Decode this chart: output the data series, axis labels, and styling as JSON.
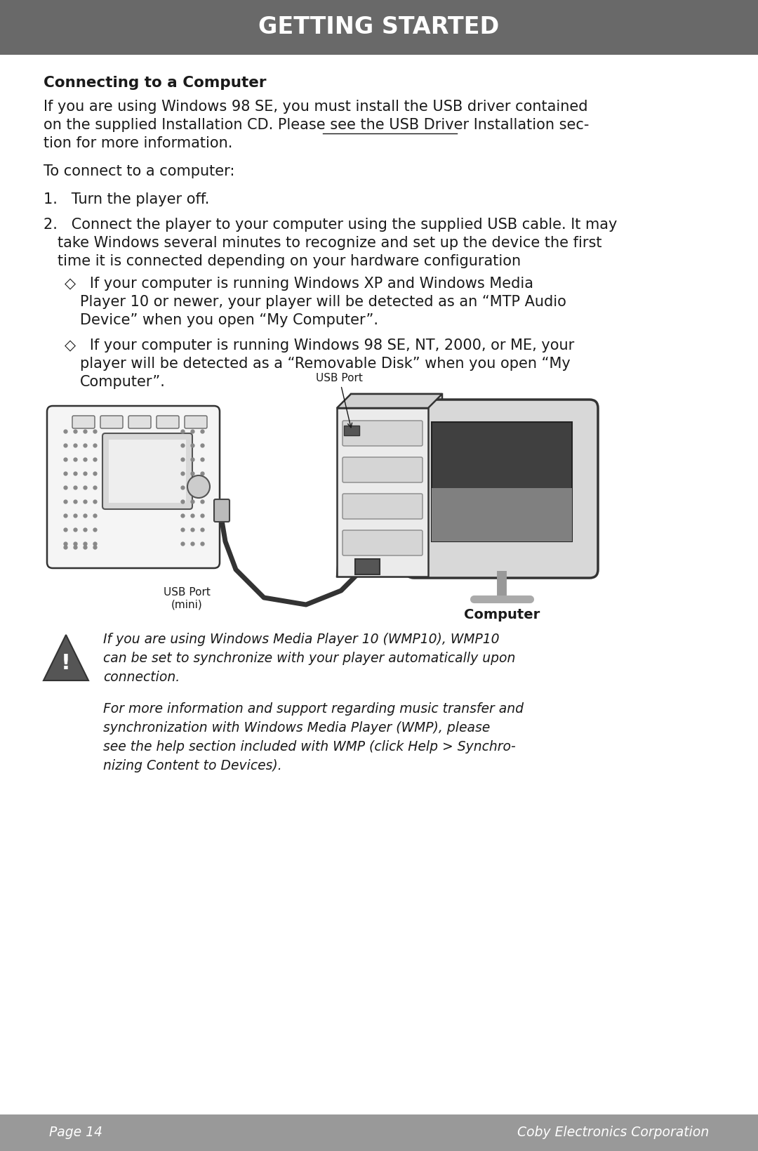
{
  "header_bg": "#696969",
  "header_text": "GETTING STARTED",
  "header_text_color": "#ffffff",
  "footer_bg": "#999999",
  "footer_left": "Page 14",
  "footer_right": "Coby Electronics Corporation",
  "footer_text_color": "#ffffff",
  "body_bg": "#ffffff",
  "body_text_color": "#1a1a1a",
  "title": "Connecting to a Computer",
  "para1_l1": "If you are using Windows 98 SE, you must install the USB driver contained",
  "para1_l2a": "on the supplied Installation CD. Please see the ",
  "para1_l2b": "USB Driver Installation",
  "para1_l2c": " sec-",
  "para1_l3": "tion for more information.",
  "para2": "To connect to a computer:",
  "item1": "1.   Turn the player off.",
  "item2_l1": "2.   Connect the player to your computer using the supplied USB cable. It may",
  "item2_l2": "      take Windows several minutes to recognize and set up the device the first",
  "item2_l3": "      time it is connected depending on your hardware configuration",
  "b1_l1": "◇   If your computer is running Windows XP and Windows Media",
  "b1_l2": "     Player 10 or newer, your player will be detected as an “MTP Audio",
  "b1_l3": "     Device” when you open “My Computer”.",
  "b2_l1": "◇   If your computer is running Windows 98 SE, NT, 2000, or ME, your",
  "b2_l2": "     player will be detected as a “Removable Disk” when you open “My",
  "b2_l3": "     Computer”.",
  "label_usb_mini": "USB Port\n(mini)",
  "label_usb": "USB Port",
  "label_computer": "Computer",
  "note1_l1": "If you are using Windows Media Player 10 (WMP10), WMP10",
  "note1_l2": "can be set to synchronize with your player automatically upon",
  "note1_l3": "connection.",
  "note2_l1": "For more information and support regarding music transfer and",
  "note2_l2": "synchronization with Windows Media Player (WMP), please",
  "note2_l3": "see the help section included with WMP (click Help > Synchro-",
  "note2_l4": "nizing Content to Devices).",
  "main_font_size": 15,
  "title_font_size": 15.5,
  "header_font_size": 24,
  "footer_font_size": 13.5,
  "note_font_size": 13.5
}
